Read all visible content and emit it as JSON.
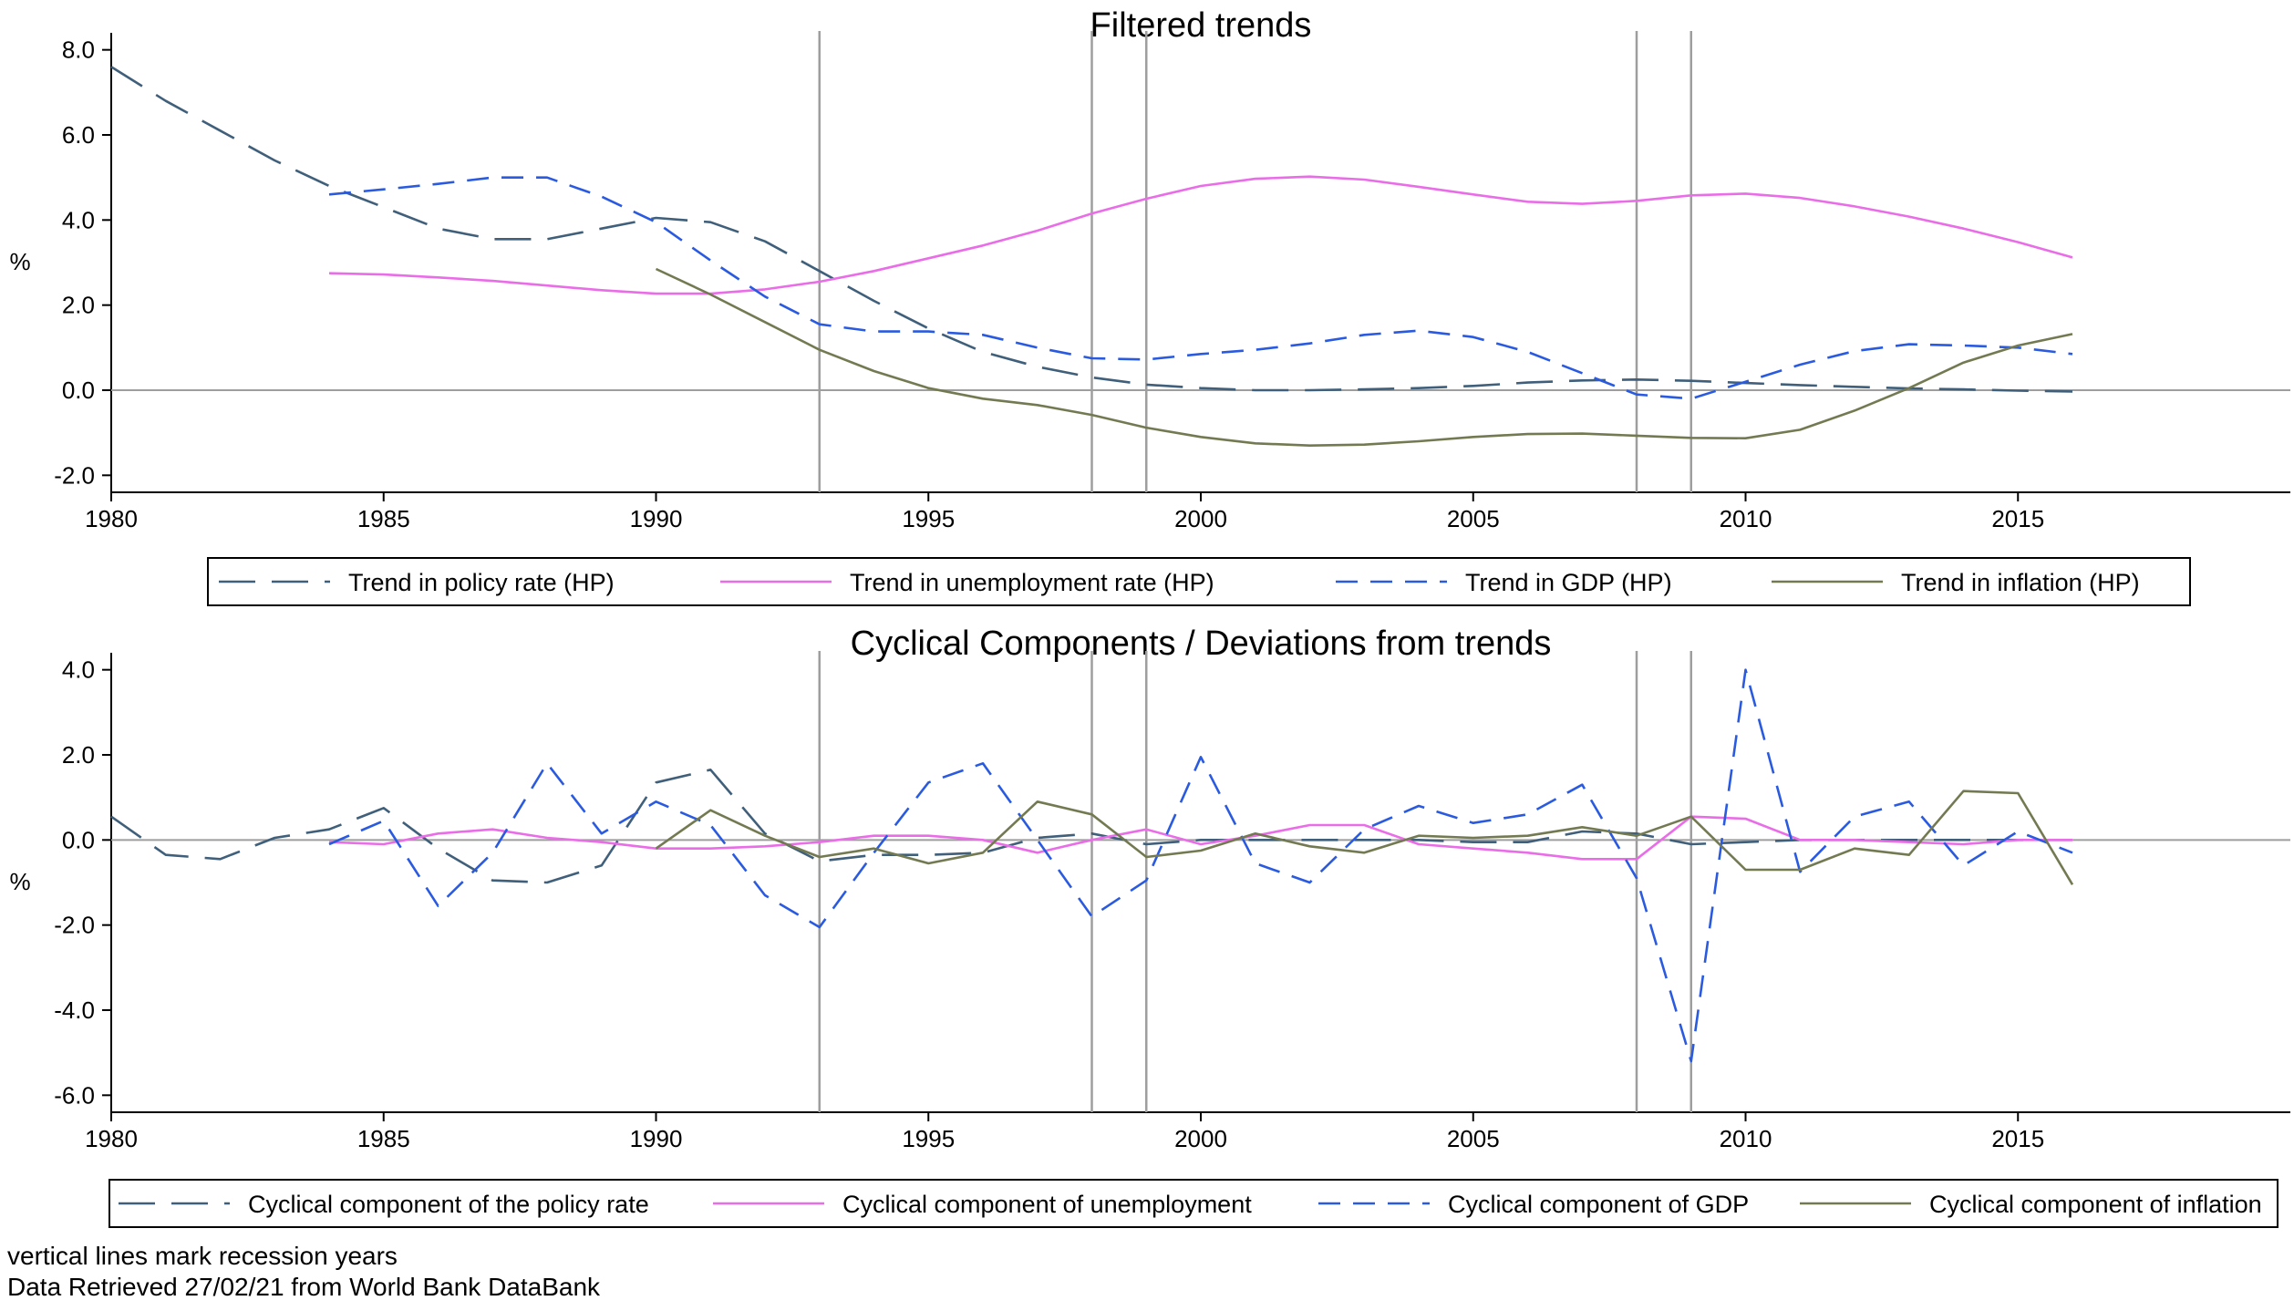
{
  "colors": {
    "policy": "#3f5f7a",
    "unemployment": "#ea6de8",
    "gdp": "#2a5ae0",
    "inflation": "#737a52",
    "recession": "#9e9e9e",
    "zero": "#9e9e9e"
  },
  "chart_data": [
    {
      "type": "line",
      "title": "Filtered trends",
      "ylabel": "%",
      "xlabel": "",
      "xlim": [
        1980,
        2020
      ],
      "ylim": [
        -2.4,
        8.4
      ],
      "xticks": [
        1980,
        1985,
        1990,
        1995,
        2000,
        2005,
        2010,
        2015
      ],
      "yticks": [
        8.0,
        6.0,
        4.0,
        2.0,
        0.0,
        -2.0
      ],
      "grid": false,
      "recession_years": [
        1993,
        1998,
        1999,
        2008,
        2009
      ],
      "zero_line": 0,
      "legend_position": "bottom",
      "series": [
        {
          "name": "Trend in policy rate (HP)",
          "color_key": "policy",
          "dash": "long-dash",
          "x": [
            1980,
            1981,
            1982,
            1983,
            1984,
            1985,
            1986,
            1987,
            1988,
            1989,
            1990,
            1991,
            1992,
            1993,
            1994,
            1995,
            1996,
            1997,
            1998,
            1999,
            2000,
            2001,
            2002,
            2003,
            2004,
            2005,
            2006,
            2007,
            2008,
            2009,
            2010,
            2011,
            2012,
            2013,
            2014,
            2015,
            2016
          ],
          "y": [
            7.6,
            6.8,
            6.1,
            5.4,
            4.8,
            4.3,
            3.8,
            3.55,
            3.55,
            3.8,
            4.05,
            3.95,
            3.5,
            2.8,
            2.1,
            1.45,
            0.9,
            0.55,
            0.3,
            0.13,
            0.05,
            0.0,
            0.0,
            0.02,
            0.05,
            0.1,
            0.18,
            0.23,
            0.25,
            0.22,
            0.17,
            0.12,
            0.08,
            0.04,
            0.02,
            -0.01,
            -0.03
          ]
        },
        {
          "name": "Trend in unemployment rate (HP)",
          "color_key": "unemployment",
          "dash": "solid",
          "x": [
            1984,
            1985,
            1986,
            1987,
            1988,
            1989,
            1990,
            1991,
            1992,
            1993,
            1994,
            1995,
            1996,
            1997,
            1998,
            1999,
            2000,
            2001,
            2002,
            2003,
            2004,
            2005,
            2006,
            2007,
            2008,
            2009,
            2010,
            2011,
            2012,
            2013,
            2014,
            2015,
            2016
          ],
          "y": [
            2.75,
            2.72,
            2.65,
            2.57,
            2.46,
            2.35,
            2.27,
            2.27,
            2.37,
            2.55,
            2.8,
            3.1,
            3.4,
            3.75,
            4.15,
            4.5,
            4.8,
            4.97,
            5.02,
            4.95,
            4.78,
            4.6,
            4.43,
            4.38,
            4.45,
            4.58,
            4.62,
            4.52,
            4.32,
            4.08,
            3.8,
            3.48,
            3.12
          ]
        },
        {
          "name": "Trend in GDP (HP)",
          "color_key": "gdp",
          "dash": "short-dash",
          "x": [
            1984,
            1985,
            1986,
            1987,
            1988,
            1989,
            1990,
            1991,
            1992,
            1993,
            1994,
            1995,
            1996,
            1997,
            1998,
            1999,
            2000,
            2001,
            2002,
            2003,
            2004,
            2005,
            2006,
            2007,
            2008,
            2009,
            2010,
            2011,
            2012,
            2013,
            2014,
            2015,
            2016
          ],
          "y": [
            4.6,
            4.72,
            4.85,
            5.0,
            5.0,
            4.55,
            3.95,
            3.05,
            2.2,
            1.55,
            1.38,
            1.38,
            1.3,
            1.0,
            0.75,
            0.72,
            0.85,
            0.95,
            1.1,
            1.3,
            1.4,
            1.25,
            0.9,
            0.4,
            -0.1,
            -0.2,
            0.2,
            0.6,
            0.92,
            1.08,
            1.05,
            1.0,
            0.85
          ]
        },
        {
          "name": "Trend in inflation (HP)",
          "color_key": "inflation",
          "dash": "solid",
          "x": [
            1990,
            1991,
            1992,
            1993,
            1994,
            1995,
            1996,
            1997,
            1998,
            1999,
            2000,
            2001,
            2002,
            2003,
            2004,
            2005,
            2006,
            2007,
            2008,
            2009,
            2010,
            2011,
            2012,
            2013,
            2014,
            2015,
            2016
          ],
          "y": [
            2.85,
            2.25,
            1.6,
            0.95,
            0.45,
            0.05,
            -0.2,
            -0.35,
            -0.58,
            -0.88,
            -1.1,
            -1.25,
            -1.3,
            -1.28,
            -1.2,
            -1.1,
            -1.03,
            -1.02,
            -1.07,
            -1.12,
            -1.13,
            -0.93,
            -0.48,
            0.05,
            0.65,
            1.05,
            1.32
          ]
        }
      ]
    },
    {
      "type": "line",
      "title": "Cyclical Components / Deviations from trends",
      "ylabel": "%",
      "xlabel": "",
      "xlim": [
        1980,
        2020
      ],
      "ylim": [
        -6.4,
        4.4
      ],
      "xticks": [
        1980,
        1985,
        1990,
        1995,
        2000,
        2005,
        2010,
        2015
      ],
      "yticks": [
        4.0,
        2.0,
        0.0,
        -2.0,
        -4.0,
        -6.0
      ],
      "grid": false,
      "recession_years": [
        1993,
        1998,
        1999,
        2008,
        2009
      ],
      "zero_line": 0,
      "legend_position": "bottom",
      "series": [
        {
          "name": "Cyclical component of the policy rate",
          "color_key": "policy",
          "dash": "long-dash",
          "x": [
            1980,
            1981,
            1982,
            1983,
            1984,
            1985,
            1986,
            1987,
            1988,
            1989,
            1990,
            1991,
            1992,
            1993,
            1994,
            1995,
            1996,
            1997,
            1998,
            1999,
            2000,
            2001,
            2002,
            2003,
            2004,
            2005,
            2006,
            2007,
            2008,
            2009,
            2010,
            2011,
            2012,
            2013,
            2014,
            2015,
            2016
          ],
          "y": [
            0.55,
            -0.35,
            -0.45,
            0.05,
            0.25,
            0.75,
            -0.2,
            -0.95,
            -1.0,
            -0.6,
            1.35,
            1.65,
            0.15,
            -0.5,
            -0.35,
            -0.35,
            -0.3,
            0.05,
            0.15,
            -0.1,
            0.0,
            0.0,
            0.0,
            0.0,
            0.0,
            -0.05,
            -0.05,
            0.2,
            0.15,
            -0.1,
            -0.05,
            0.0,
            0.0,
            0.0,
            0.0,
            0.0,
            0.0
          ]
        },
        {
          "name": "Cyclical component of unemployment",
          "color_key": "unemployment",
          "dash": "solid",
          "x": [
            1984,
            1985,
            1986,
            1987,
            1988,
            1989,
            1990,
            1991,
            1992,
            1993,
            1994,
            1995,
            1996,
            1997,
            1998,
            1999,
            2000,
            2001,
            2002,
            2003,
            2004,
            2005,
            2006,
            2007,
            2008,
            2009,
            2010,
            2011,
            2012,
            2013,
            2014,
            2015,
            2016
          ],
          "y": [
            -0.05,
            -0.1,
            0.15,
            0.25,
            0.05,
            -0.05,
            -0.2,
            -0.2,
            -0.15,
            -0.05,
            0.1,
            0.1,
            0.0,
            -0.3,
            0.0,
            0.25,
            -0.1,
            0.1,
            0.35,
            0.35,
            -0.1,
            -0.2,
            -0.3,
            -0.45,
            -0.45,
            0.55,
            0.5,
            0.0,
            0.0,
            -0.05,
            -0.1,
            0.0,
            0.0
          ]
        },
        {
          "name": "Cyclical component of GDP",
          "color_key": "gdp",
          "dash": "short-dash",
          "x": [
            1984,
            1985,
            1986,
            1987,
            1988,
            1989,
            1990,
            1991,
            1992,
            1993,
            1994,
            1995,
            1996,
            1997,
            1998,
            1999,
            2000,
            2001,
            2002,
            2003,
            2004,
            2005,
            2006,
            2007,
            2008,
            2009,
            2010,
            2011,
            2012,
            2013,
            2014,
            2015,
            2016
          ],
          "y": [
            -0.1,
            0.45,
            -1.55,
            -0.3,
            1.8,
            0.15,
            0.9,
            0.35,
            -1.3,
            -2.05,
            -0.3,
            1.35,
            1.8,
            0.0,
            -1.8,
            -0.95,
            1.95,
            -0.55,
            -1.0,
            0.25,
            0.8,
            0.4,
            0.6,
            1.3,
            -0.9,
            -5.2,
            4.0,
            -0.75,
            0.55,
            0.9,
            -0.6,
            0.2,
            -0.3
          ]
        },
        {
          "name": "Cyclical component of inflation",
          "color_key": "inflation",
          "dash": "solid",
          "x": [
            1990,
            1991,
            1992,
            1993,
            1994,
            1995,
            1996,
            1997,
            1998,
            1999,
            2000,
            2001,
            2002,
            2003,
            2004,
            2005,
            2006,
            2007,
            2008,
            2009,
            2010,
            2011,
            2012,
            2013,
            2014,
            2015,
            2016
          ],
          "y": [
            -0.2,
            0.7,
            0.1,
            -0.4,
            -0.2,
            -0.55,
            -0.3,
            0.9,
            0.6,
            -0.4,
            -0.25,
            0.15,
            -0.15,
            -0.3,
            0.1,
            0.05,
            0.1,
            0.3,
            0.1,
            0.55,
            -0.7,
            -0.7,
            -0.2,
            -0.35,
            1.15,
            1.1,
            -1.05
          ]
        }
      ]
    }
  ],
  "notes": {
    "line1": "vertical lines mark recession years",
    "line2": "Data Retrieved 27/02/21 from World Bank DataBank"
  }
}
